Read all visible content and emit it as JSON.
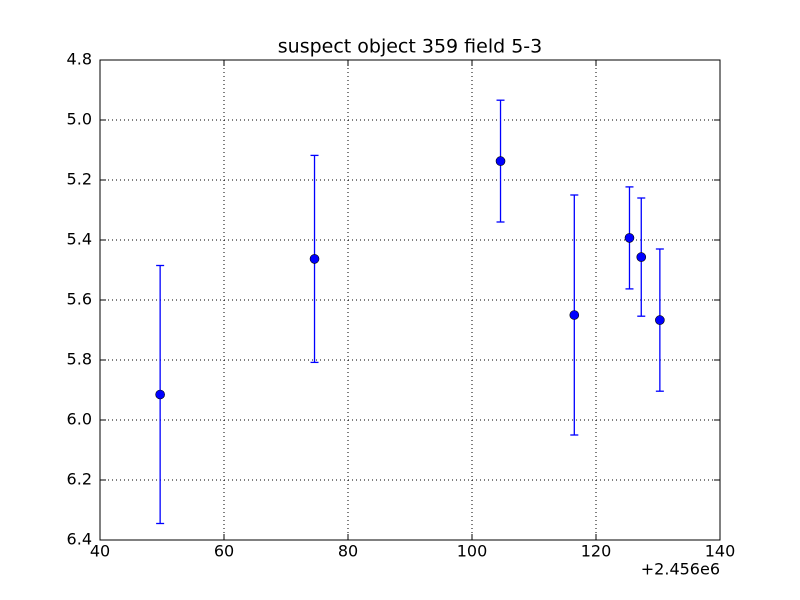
{
  "chart_data": {
    "type": "errorbar",
    "title": "suspect object 359 field 5-3",
    "x_offset_label": "+2.456e6",
    "series": [
      {
        "color": "#0000ff",
        "x": [
          49.7,
          74.6,
          104.6,
          116.5,
          125.4,
          127.3,
          130.3
        ],
        "values": [
          5.915,
          5.463,
          5.137,
          5.65,
          5.393,
          5.457,
          5.667
        ],
        "errors": [
          0.43,
          0.345,
          0.203,
          0.4,
          0.17,
          0.197,
          0.237
        ]
      }
    ],
    "xlim": [
      40,
      140
    ],
    "xticks": [
      40,
      60,
      80,
      100,
      120,
      140
    ],
    "ylim": [
      4.8,
      6.4
    ],
    "y_inverted": true,
    "yticks": [
      4.8,
      {
        "value": 5,
        "label": "5.0"
      },
      5.2,
      5.4,
      5.6,
      5.8,
      {
        "value": 6,
        "label": "6.0"
      },
      6.2,
      6.4
    ],
    "grid": true
  }
}
